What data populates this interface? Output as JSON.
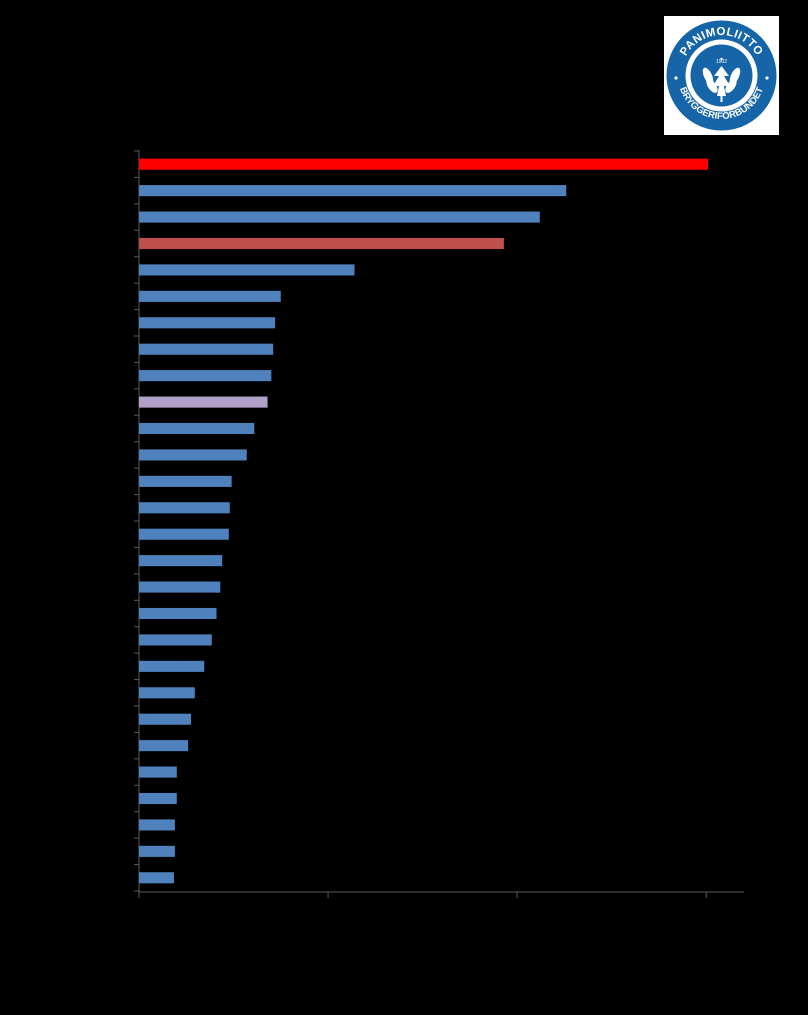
{
  "logo": {
    "text_top": "PANIMOLIITTO",
    "text_bottom": "BRYGGERIFÖRBUNDET",
    "year": "1902",
    "color": "#1565a8"
  },
  "chart_data": {
    "type": "bar",
    "orientation": "horizontal",
    "title": "",
    "xlabel": "",
    "ylabel": "",
    "xlim": [
      0,
      3.2
    ],
    "x_ticks": [
      0,
      1,
      2,
      3
    ],
    "tick_labels_visible": false,
    "grid": false,
    "legend": "none",
    "colors": {
      "default": "#4f81bd",
      "highlight_1": "#ff0000",
      "highlight_2": "#c0504d",
      "highlight_3": "#b1a0c7"
    },
    "values": [
      3.01,
      2.26,
      2.12,
      1.93,
      1.14,
      0.75,
      0.72,
      0.71,
      0.7,
      0.68,
      0.61,
      0.57,
      0.49,
      0.48,
      0.475,
      0.44,
      0.43,
      0.41,
      0.385,
      0.345,
      0.295,
      0.275,
      0.26,
      0.2,
      0.2,
      0.19,
      0.19,
      0.185
    ],
    "bar_colors": [
      "highlight_1",
      "default",
      "default",
      "highlight_2",
      "default",
      "default",
      "default",
      "default",
      "default",
      "highlight_3",
      "default",
      "default",
      "default",
      "default",
      "default",
      "default",
      "default",
      "default",
      "default",
      "default",
      "default",
      "default",
      "default",
      "default",
      "default",
      "default",
      "default",
      "default"
    ]
  }
}
